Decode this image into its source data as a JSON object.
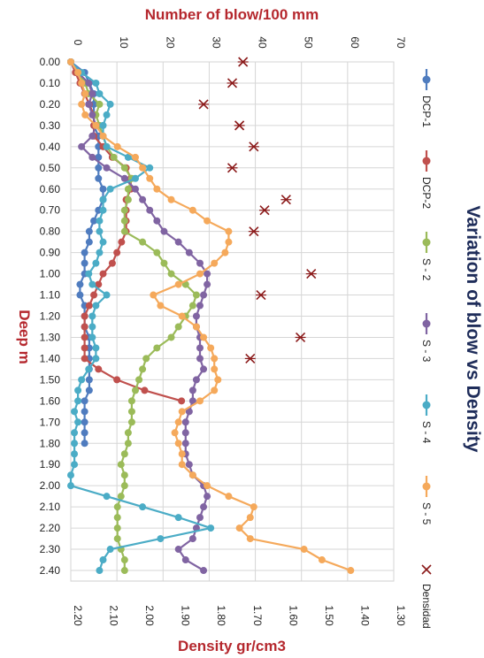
{
  "chart_data": {
    "type": "line",
    "title": "Variation of blow vs Density",
    "top_axis": {
      "label": "Number of blow/100 mm",
      "range": [
        0,
        70
      ],
      "ticks": [
        0,
        10,
        20,
        30,
        40,
        50,
        60,
        70
      ]
    },
    "bottom_axis": {
      "label": "Density gr/cm3",
      "range": [
        2.2,
        1.3
      ],
      "ticks": [
        "2.20",
        "2.10",
        "2.00",
        "1.90",
        "1.80",
        "1.70",
        "1.60",
        "1.50",
        "1.40",
        "1.30"
      ]
    },
    "y_axis": {
      "label": "Deep m",
      "range": [
        0.0,
        2.45
      ],
      "ticks": [
        "0.00",
        "0.10",
        "0.20",
        "0.30",
        "0.40",
        "0.50",
        "0.60",
        "0.70",
        "0.80",
        "0.90",
        "1.00",
        "1.10",
        "1.20",
        "1.30",
        "1.40",
        "1.50",
        "1.60",
        "1.70",
        "1.80",
        "1.90",
        "2.00",
        "2.10",
        "2.20",
        "2.30",
        "2.40"
      ]
    },
    "grid": true,
    "legend_position": "right",
    "depths": [
      0.0,
      0.05,
      0.1,
      0.15,
      0.2,
      0.25,
      0.3,
      0.35,
      0.4,
      0.45,
      0.5,
      0.55,
      0.6,
      0.65,
      0.7,
      0.75,
      0.8,
      0.85,
      0.9,
      0.95,
      1.0,
      1.05,
      1.1,
      1.15,
      1.2,
      1.25,
      1.3,
      1.35,
      1.4,
      1.45,
      1.5,
      1.55,
      1.6,
      1.65,
      1.7,
      1.75,
      1.8,
      1.85,
      1.9,
      1.95,
      2.0,
      2.05,
      2.1,
      2.15,
      2.2,
      2.25,
      2.3,
      2.35,
      2.4
    ],
    "series": [
      {
        "name": "DCP-1",
        "color": "#4f7cbf",
        "axis": "top",
        "values": [
          0,
          3,
          4,
          5,
          5,
          5,
          5,
          6,
          6,
          6,
          6,
          6,
          7,
          7,
          6,
          5,
          4,
          4,
          3,
          3,
          3,
          2,
          2,
          3,
          3,
          3,
          4,
          4,
          4,
          4,
          4,
          4,
          3,
          3,
          3,
          3,
          3,
          null,
          null,
          null,
          null,
          null,
          null,
          null,
          null,
          null,
          null,
          null,
          null
        ]
      },
      {
        "name": "DCP-2",
        "color": "#c0504d",
        "axis": "top",
        "values": [
          0,
          1,
          2,
          3,
          4,
          5,
          5,
          5,
          7,
          9,
          12,
          13,
          13,
          12,
          12,
          12,
          12,
          11,
          10,
          9,
          7,
          6,
          5,
          4,
          3,
          3,
          3,
          3,
          3,
          6,
          10,
          16,
          24,
          null,
          null,
          null,
          null,
          null,
          null,
          null,
          null,
          null,
          null,
          null,
          null,
          null,
          null,
          null,
          null
        ]
      },
      {
        "name": "S - 2",
        "color": "#9bbb59",
        "axis": "bottom",
        "values": [
          2.2,
          2.18,
          2.16,
          2.15,
          2.12,
          2.13,
          2.12,
          2.11,
          2.1,
          2.08,
          2.05,
          2.03,
          2.04,
          2.04,
          2.05,
          2.05,
          2.05,
          2.0,
          1.96,
          1.94,
          1.92,
          1.88,
          1.85,
          1.86,
          1.88,
          1.9,
          1.92,
          1.96,
          1.99,
          2.0,
          2.01,
          2.02,
          2.03,
          2.03,
          2.03,
          2.04,
          2.04,
          2.05,
          2.06,
          2.05,
          2.05,
          2.06,
          2.07,
          2.07,
          2.07,
          2.07,
          2.06,
          2.05,
          2.05
        ]
      },
      {
        "name": "S - 3",
        "color": "#8064a2",
        "axis": "bottom",
        "values": [
          2.2,
          2.18,
          2.15,
          2.14,
          2.15,
          2.14,
          2.13,
          2.14,
          2.17,
          2.14,
          2.1,
          2.05,
          2.02,
          2.0,
          1.98,
          1.96,
          1.94,
          1.9,
          1.87,
          1.84,
          1.82,
          1.82,
          1.83,
          1.84,
          1.85,
          1.85,
          1.84,
          1.84,
          1.84,
          1.83,
          1.85,
          1.86,
          1.86,
          1.87,
          1.88,
          1.88,
          1.88,
          1.88,
          1.87,
          1.86,
          1.83,
          1.82,
          1.83,
          1.84,
          1.85,
          1.86,
          1.9,
          1.88,
          1.83
        ]
      },
      {
        "name": "S - 4",
        "color": "#4bacc6",
        "axis": "bottom",
        "values": [
          2.2,
          2.17,
          2.13,
          2.12,
          2.09,
          2.1,
          2.11,
          2.11,
          2.1,
          2.04,
          1.98,
          2.02,
          2.09,
          2.11,
          2.11,
          2.12,
          2.12,
          2.11,
          2.12,
          2.13,
          2.15,
          2.14,
          2.1,
          2.13,
          2.14,
          2.14,
          2.14,
          2.13,
          2.13,
          2.15,
          2.17,
          2.18,
          2.18,
          2.19,
          2.18,
          2.19,
          2.19,
          2.19,
          2.19,
          2.2,
          2.2,
          2.1,
          2.0,
          1.9,
          1.81,
          1.95,
          2.09,
          2.11,
          2.12
        ]
      },
      {
        "name": "S - 5",
        "color": "#f5a95b",
        "axis": "bottom",
        "values": [
          2.2,
          2.18,
          2.17,
          2.16,
          2.17,
          2.16,
          2.13,
          2.11,
          2.07,
          2.02,
          2.0,
          1.98,
          1.96,
          1.92,
          1.86,
          1.82,
          1.76,
          1.76,
          1.77,
          1.8,
          1.84,
          1.9,
          1.97,
          1.95,
          1.89,
          1.85,
          1.83,
          1.81,
          1.8,
          1.8,
          1.79,
          1.8,
          1.84,
          1.89,
          1.9,
          1.91,
          1.9,
          1.89,
          1.89,
          1.86,
          1.82,
          1.76,
          1.69,
          1.7,
          1.73,
          1.7,
          1.55,
          1.5,
          1.42
        ]
      },
      {
        "name": "Densidad",
        "color": "#8b1a1a",
        "axis": "bottom",
        "marker": "x",
        "points": [
          {
            "depth": 0.0,
            "density": 1.72
          },
          {
            "depth": 0.1,
            "density": 1.75
          },
          {
            "depth": 0.2,
            "density": 1.83
          },
          {
            "depth": 0.3,
            "density": 1.73
          },
          {
            "depth": 0.4,
            "density": 1.69
          },
          {
            "depth": 0.5,
            "density": 1.75
          },
          {
            "depth": 0.65,
            "density": 1.6
          },
          {
            "depth": 0.7,
            "density": 1.66
          },
          {
            "depth": 0.8,
            "density": 1.69
          },
          {
            "depth": 1.0,
            "density": 1.53
          },
          {
            "depth": 1.1,
            "density": 1.67
          },
          {
            "depth": 1.3,
            "density": 1.56
          },
          {
            "depth": 1.4,
            "density": 1.7
          }
        ]
      }
    ]
  }
}
